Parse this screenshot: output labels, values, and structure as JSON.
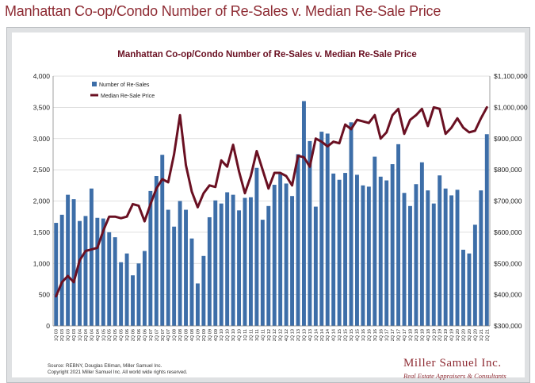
{
  "page": {
    "title": "Manhattan Co-op/Condo Number of Re-Sales v. Median Re-Sale Price"
  },
  "colors": {
    "bar": "#3d6ea8",
    "line": "#6a1022",
    "title": "#8e2b33",
    "brand": "#8e2b33"
  },
  "chart_data": {
    "type": "bar",
    "title": "Manhattan Co-op/Condo Number of Re-Sales v. Median Re-Sale Price",
    "categories": [
      "1Q 03",
      "2Q 03",
      "3Q 03",
      "4Q 03",
      "1Q 04",
      "2Q 04",
      "3Q 04",
      "4Q 04",
      "1Q 05",
      "2Q 05",
      "3Q 05",
      "4Q 05",
      "1Q 06",
      "2Q 06",
      "3Q 06",
      "4Q 06",
      "1Q 07",
      "2Q 07",
      "3Q 07",
      "4Q 07",
      "1Q 08",
      "2Q 08",
      "3Q 08",
      "4Q 08",
      "1Q 09",
      "2Q 09",
      "3Q 09",
      "4Q 09",
      "1Q 10",
      "2Q 10",
      "3Q 10",
      "4Q 10",
      "1Q 11",
      "2Q 11",
      "3Q 11",
      "4Q 11",
      "1Q 12",
      "2Q 12",
      "3Q 12",
      "4Q 12",
      "1Q 13",
      "2Q 13",
      "3Q 13",
      "4Q 13",
      "1Q 14",
      "2Q 14",
      "3Q 14",
      "4Q 14",
      "1Q 15",
      "2Q 15",
      "3Q 15",
      "4Q 15",
      "1Q 16",
      "2Q 16",
      "3Q 16",
      "4Q 16",
      "1Q 17",
      "2Q 17",
      "3Q 17",
      "4Q 17",
      "1Q 18",
      "2Q 18",
      "3Q 18",
      "4Q 18",
      "1Q 19",
      "2Q 19",
      "3Q 19",
      "4Q 19",
      "1Q 20",
      "2Q 20",
      "3Q 20",
      "4Q 20",
      "1Q 21",
      "2Q 21"
    ],
    "series": [
      {
        "name": "Number of Re-Sales",
        "axis": "left",
        "type": "bar",
        "values": [
          1650,
          1780,
          2100,
          2030,
          1680,
          1760,
          2200,
          1730,
          1720,
          1500,
          1420,
          1020,
          1160,
          810,
          1000,
          1200,
          2160,
          2400,
          2740,
          1860,
          1590,
          2000,
          1860,
          1400,
          680,
          1120,
          1740,
          2010,
          1960,
          2140,
          2100,
          1850,
          2050,
          2060,
          2530,
          1700,
          1920,
          2260,
          2440,
          2280,
          2080,
          2750,
          3600,
          2960,
          1910,
          3110,
          3080,
          2440,
          2340,
          2450,
          3260,
          2420,
          2250,
          2230,
          2710,
          2390,
          2330,
          2590,
          2910,
          2130,
          1920,
          2270,
          2620,
          2170,
          1960,
          2410,
          2200,
          2090,
          2180,
          1220,
          1160,
          1620,
          2170,
          3070
        ]
      },
      {
        "name": "Median Re-Sale Price",
        "axis": "right",
        "type": "line",
        "values": [
          395000,
          440000,
          460000,
          440000,
          510000,
          540000,
          545000,
          550000,
          605000,
          650000,
          650000,
          645000,
          650000,
          690000,
          685000,
          635000,
          690000,
          740000,
          770000,
          760000,
          850000,
          975000,
          815000,
          730000,
          680000,
          725000,
          750000,
          745000,
          830000,
          810000,
          880000,
          795000,
          725000,
          780000,
          860000,
          800000,
          740000,
          790000,
          790000,
          780000,
          750000,
          845000,
          840000,
          810000,
          900000,
          890000,
          875000,
          890000,
          885000,
          945000,
          930000,
          960000,
          955000,
          950000,
          975000,
          900000,
          920000,
          975000,
          995000,
          915000,
          960000,
          975000,
          995000,
          940000,
          1000000,
          995000,
          915000,
          935000,
          965000,
          935000,
          920000,
          925000,
          965000,
          1000000
        ]
      }
    ],
    "y_left": {
      "min": 0,
      "max": 4000,
      "ticks": [
        "0",
        "500",
        "1,000",
        "1,500",
        "2,000",
        "2,500",
        "3,000",
        "3,500",
        "4,000"
      ]
    },
    "y_right": {
      "min": 300000,
      "max": 1100000,
      "ticks": [
        "$300,000",
        "$400,000",
        "$500,000",
        "$600,000",
        "$700,000",
        "$800,000",
        "$900,000",
        "$1,000,000",
        "$1,100,000"
      ]
    },
    "legend": [
      "Number of Re-Sales",
      "Median Re-Sale Price"
    ],
    "legend_position": "top-left",
    "grid": true
  },
  "footer": {
    "source": "Source: REBNY, Douglas Elliman, Miller Samuel Inc.",
    "copyright": "Copyright 2021 Miller Samuel Inc.  All world wide rights reserved."
  },
  "brand": {
    "name": "Miller Samuel Inc.",
    "tagline": "Real Estate Appraisers & Consultants"
  }
}
